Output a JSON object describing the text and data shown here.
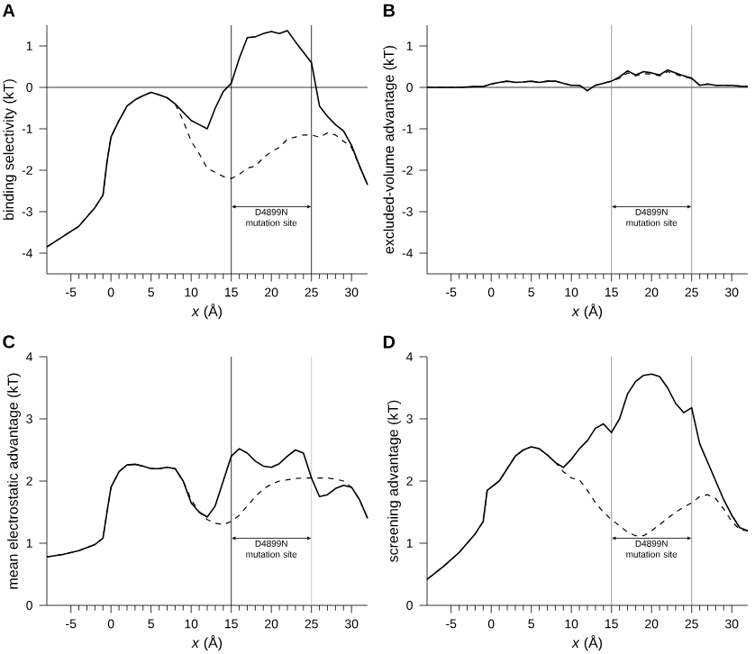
{
  "chart_data": [
    {
      "type": "line",
      "title": "A",
      "xlabel": "*x* (Å)",
      "ylabel": "binding selectivity (kT)",
      "marker": "none",
      "xlim": [
        -8,
        32
      ],
      "ylim": [
        -4.5,
        1.5
      ],
      "xticks": [
        -5,
        0,
        5,
        10,
        15,
        20,
        25,
        30
      ],
      "yticks": [
        -4,
        -3,
        -2,
        -1,
        0,
        1
      ],
      "x": [
        -8,
        -6,
        -4,
        -2,
        -1,
        -0.5,
        0,
        1,
        2,
        3,
        4,
        5,
        6,
        7,
        8,
        9,
        10,
        11,
        12,
        13,
        14,
        15,
        16,
        17,
        18,
        19,
        20,
        21,
        22,
        23,
        24,
        25,
        26,
        27,
        28,
        29,
        30,
        31,
        32
      ],
      "series": [
        {
          "color": "#000000",
          "line_style": "dashed",
          "values": [
            -3.85,
            -3.6,
            -3.35,
            -2.9,
            -2.6,
            -1.8,
            -1.2,
            -0.8,
            -0.45,
            -0.3,
            -0.2,
            -0.12,
            -0.18,
            -0.25,
            -0.4,
            -0.8,
            -1.3,
            -1.6,
            -1.95,
            -2.05,
            -2.15,
            -2.2,
            -2.1,
            -1.95,
            -1.9,
            -1.7,
            -1.55,
            -1.45,
            -1.25,
            -1.2,
            -1.15,
            -1.15,
            -1.2,
            -1.1,
            -1.15,
            -1.3,
            -1.45,
            -1.9,
            -2.35
          ]
        },
        {
          "color": "#000000",
          "line_style": "solid",
          "values": [
            -3.85,
            -3.6,
            -3.35,
            -2.9,
            -2.6,
            -1.8,
            -1.2,
            -0.8,
            -0.45,
            -0.3,
            -0.2,
            -0.12,
            -0.18,
            -0.25,
            -0.4,
            -0.6,
            -0.8,
            -0.9,
            -1.0,
            -0.5,
            -0.1,
            0.1,
            0.7,
            1.2,
            1.22,
            1.3,
            1.35,
            1.3,
            1.37,
            1.1,
            0.85,
            0.6,
            -0.45,
            -0.7,
            -0.9,
            -1.05,
            -1.4,
            -1.9,
            -2.35
          ]
        }
      ],
      "ref_lines": [
        {
          "axis": "y",
          "value": 0,
          "color": "#000000"
        },
        {
          "axis": "x",
          "value": 15,
          "color": "#000000"
        },
        {
          "axis": "x",
          "value": 25,
          "color": "#000000"
        }
      ],
      "annotations": [
        "D4899N mutation site"
      ]
    },
    {
      "type": "line",
      "title": "B",
      "xlabel": "*x* (Å)",
      "ylabel": "excluded-volume advantage (kT)",
      "marker": "none",
      "xlim": [
        -8,
        32
      ],
      "ylim": [
        -4.5,
        1.5
      ],
      "xticks": [
        -5,
        0,
        5,
        10,
        15,
        20,
        25,
        30
      ],
      "yticks": [
        -4,
        -3,
        -2,
        -1,
        0,
        1
      ],
      "x": [
        -8,
        -6,
        -4,
        -2,
        -1,
        -0.5,
        0,
        1,
        2,
        3,
        4,
        5,
        6,
        7,
        8,
        9,
        10,
        11,
        12,
        13,
        14,
        15,
        16,
        17,
        18,
        19,
        20,
        21,
        22,
        23,
        24,
        25,
        26,
        27,
        28,
        29,
        30,
        31,
        32
      ],
      "series": [
        {
          "color": "#000000",
          "line_style": "dashed",
          "values": [
            0,
            0,
            0,
            0.02,
            0.02,
            0.05,
            0.08,
            0.12,
            0.15,
            0.12,
            0.13,
            0.15,
            0.12,
            0.15,
            0.15,
            0.1,
            0.05,
            0.05,
            -0.08,
            0.05,
            0.1,
            0.15,
            0.22,
            0.35,
            0.28,
            0.33,
            0.32,
            0.28,
            0.38,
            0.32,
            0.25,
            0.22,
            0.05,
            0.08,
            0.05,
            0.05,
            0.05,
            0.03,
            0.02
          ]
        },
        {
          "color": "#000000",
          "line_style": "solid",
          "values": [
            0,
            0,
            0,
            0.02,
            0.02,
            0.05,
            0.08,
            0.12,
            0.15,
            0.12,
            0.13,
            0.15,
            0.12,
            0.15,
            0.15,
            0.1,
            0.05,
            0.05,
            -0.08,
            0.05,
            0.1,
            0.15,
            0.25,
            0.4,
            0.3,
            0.38,
            0.35,
            0.3,
            0.42,
            0.35,
            0.28,
            0.22,
            0.05,
            0.08,
            0.05,
            0.05,
            0.05,
            0.03,
            0.02
          ]
        }
      ],
      "ref_lines": [
        {
          "axis": "y",
          "value": 0,
          "color": "#000000"
        },
        {
          "axis": "x",
          "value": 15,
          "color": "#808080"
        },
        {
          "axis": "x",
          "value": 25,
          "color": "#808080"
        }
      ],
      "annotations": [
        "D4899N mutation site"
      ]
    },
    {
      "type": "line",
      "title": "C",
      "xlabel": "*x* (Å)",
      "ylabel": "mean electrostatic advantage (kT)",
      "marker": "none",
      "xlim": [
        -8,
        32
      ],
      "ylim": [
        0,
        4
      ],
      "xticks": [
        -5,
        0,
        5,
        10,
        15,
        20,
        25,
        30
      ],
      "yticks": [
        0,
        1,
        2,
        3,
        4
      ],
      "x": [
        -8,
        -6,
        -4,
        -2,
        -1,
        -0.5,
        0,
        1,
        2,
        3,
        4,
        5,
        6,
        7,
        8,
        9,
        10,
        11,
        12,
        13,
        14,
        15,
        16,
        17,
        18,
        19,
        20,
        21,
        22,
        23,
        24,
        25,
        26,
        27,
        28,
        29,
        30,
        31,
        32
      ],
      "series": [
        {
          "color": "#000000",
          "line_style": "dashed",
          "values": [
            0.78,
            0.82,
            0.88,
            0.98,
            1.08,
            1.5,
            1.9,
            2.15,
            2.26,
            2.27,
            2.24,
            2.2,
            2.2,
            2.22,
            2.2,
            2.0,
            1.7,
            1.5,
            1.38,
            1.32,
            1.3,
            1.35,
            1.45,
            1.6,
            1.75,
            1.87,
            1.95,
            2.0,
            2.02,
            2.04,
            2.05,
            2.05,
            2.05,
            2.05,
            2.03,
            2.0,
            1.9,
            1.7,
            1.4
          ]
        },
        {
          "color": "#000000",
          "line_style": "solid",
          "values": [
            0.78,
            0.82,
            0.88,
            0.98,
            1.08,
            1.5,
            1.9,
            2.15,
            2.26,
            2.27,
            2.24,
            2.2,
            2.2,
            2.22,
            2.2,
            2.0,
            1.65,
            1.5,
            1.42,
            1.6,
            2.0,
            2.4,
            2.52,
            2.45,
            2.32,
            2.24,
            2.22,
            2.28,
            2.4,
            2.5,
            2.45,
            2.05,
            1.75,
            1.78,
            1.88,
            1.93,
            1.9,
            1.7,
            1.4
          ]
        }
      ],
      "ref_lines": [
        {
          "axis": "x",
          "value": 15,
          "color": "#000000"
        },
        {
          "axis": "x",
          "value": 25,
          "color": "#c0c0c0"
        }
      ],
      "annotations": [
        "D4899N mutation site"
      ]
    },
    {
      "type": "line",
      "title": "D",
      "xlabel": "*x* (Å)",
      "ylabel": "screening advantage (kT)",
      "marker": "none",
      "xlim": [
        -8,
        32
      ],
      "ylim": [
        0,
        4
      ],
      "xticks": [
        -5,
        0,
        5,
        10,
        15,
        20,
        25,
        30
      ],
      "yticks": [
        0,
        1,
        2,
        3,
        4
      ],
      "x": [
        -8,
        -6,
        -4,
        -2,
        -1,
        -0.5,
        0,
        1,
        2,
        3,
        4,
        5,
        6,
        7,
        8,
        9,
        10,
        11,
        12,
        13,
        14,
        15,
        16,
        17,
        18,
        19,
        20,
        21,
        22,
        23,
        24,
        25,
        26,
        27,
        28,
        29,
        30,
        31,
        32
      ],
      "series": [
        {
          "color": "#000000",
          "line_style": "dashed",
          "values": [
            0.42,
            0.62,
            0.85,
            1.15,
            1.35,
            1.85,
            1.9,
            2.0,
            2.2,
            2.4,
            2.5,
            2.55,
            2.52,
            2.42,
            2.3,
            2.15,
            2.05,
            2.02,
            1.85,
            1.65,
            1.5,
            1.38,
            1.28,
            1.18,
            1.12,
            1.12,
            1.2,
            1.3,
            1.4,
            1.5,
            1.58,
            1.65,
            1.75,
            1.78,
            1.72,
            1.55,
            1.35,
            1.22,
            1.2
          ]
        },
        {
          "color": "#000000",
          "line_style": "solid",
          "values": [
            0.42,
            0.62,
            0.85,
            1.15,
            1.35,
            1.85,
            1.9,
            2.0,
            2.2,
            2.4,
            2.5,
            2.55,
            2.52,
            2.42,
            2.3,
            2.22,
            2.35,
            2.52,
            2.65,
            2.85,
            2.92,
            2.78,
            3.0,
            3.4,
            3.6,
            3.7,
            3.72,
            3.68,
            3.5,
            3.25,
            3.1,
            3.18,
            2.6,
            2.3,
            2.0,
            1.7,
            1.45,
            1.25,
            1.2
          ]
        }
      ],
      "ref_lines": [
        {
          "axis": "x",
          "value": 15,
          "color": "#808080"
        },
        {
          "axis": "x",
          "value": 25,
          "color": "#808080"
        }
      ],
      "annotations": [
        "D4899N mutation site"
      ]
    }
  ]
}
